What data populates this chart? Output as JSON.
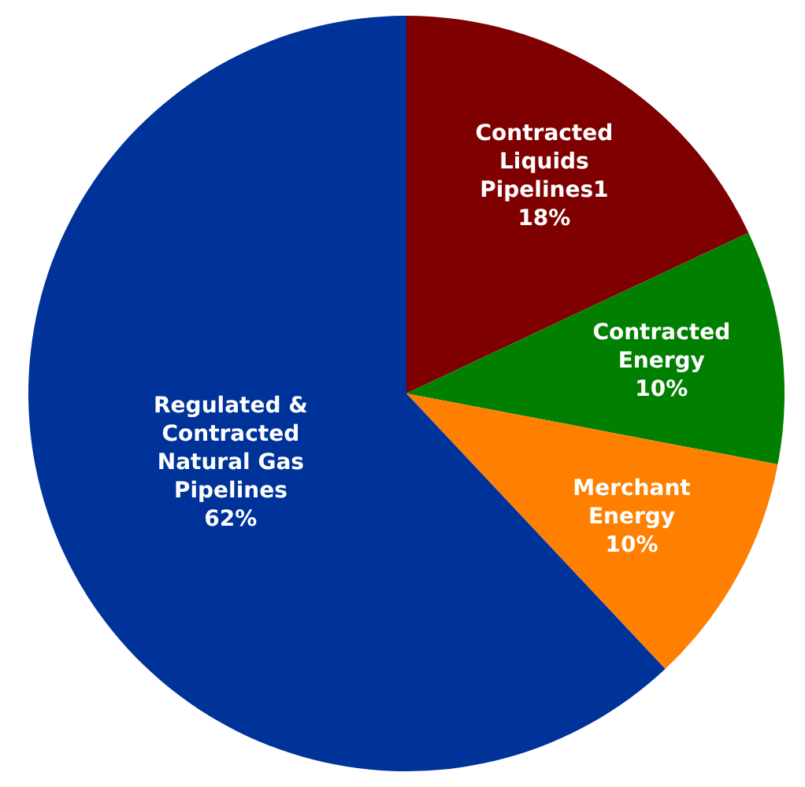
{
  "chart_data": {
    "type": "pie",
    "categories": [
      "Contracted Liquids Pipelines1",
      "Contracted Energy",
      "Merchant Energy",
      "Regulated & Contracted Natural Gas Pipelines"
    ],
    "values": [
      18,
      10,
      10,
      62
    ],
    "colors": [
      "#7f0000",
      "#007f00",
      "#ff7f00",
      "#003399"
    ],
    "value_labels": [
      "18%",
      "10%",
      "10%",
      "62%"
    ]
  }
}
